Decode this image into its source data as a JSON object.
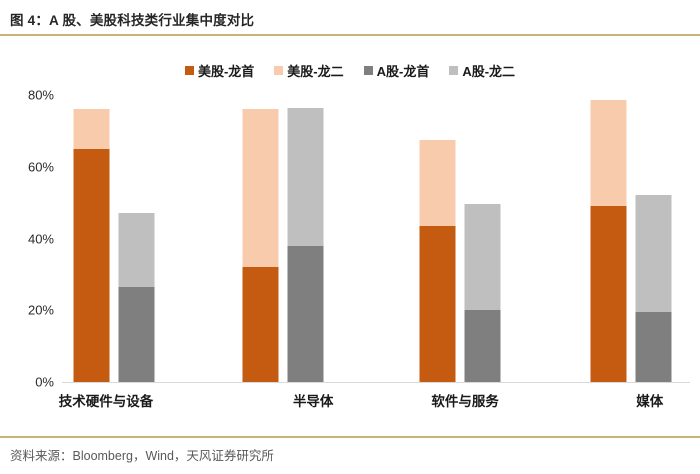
{
  "header": {
    "title": "图 4：A 股、美股科技类行业集中度对比"
  },
  "footer": {
    "source": "资料来源：Bloomberg，Wind，天风证券研究所"
  },
  "colors": {
    "rule_line": "#C6B478",
    "axis_line": "#D9D9D9",
    "us_leader": "#C55A11",
    "us_second": "#F8CBAD",
    "a_leader": "#7F7F7F",
    "a_second": "#BFBFBF"
  },
  "chart_data": {
    "type": "bar",
    "stacked": true,
    "title": "图 4：A 股、美股科技类行业集中度对比",
    "categories": [
      "技术硬件与设备",
      "半导体",
      "软件与服务",
      "媒体"
    ],
    "series": [
      {
        "name": "美股-龙首",
        "stack": "美股",
        "color": "#C55A11",
        "values": [
          65,
          32,
          43.5,
          49
        ]
      },
      {
        "name": "美股-龙二",
        "stack": "美股",
        "color": "#F8CBAD",
        "values": [
          11,
          44,
          24,
          29.5
        ]
      },
      {
        "name": "A股-龙首",
        "stack": "A股",
        "color": "#7F7F7F",
        "values": [
          26.5,
          38,
          20,
          19.5
        ]
      },
      {
        "name": "A股-龙二",
        "stack": "A股",
        "color": "#BFBFBF",
        "values": [
          20.5,
          38.5,
          29.5,
          32.5
        ]
      }
    ],
    "stack_totals": {
      "美股": [
        76,
        76,
        67.5,
        78.5
      ],
      "A股": [
        47,
        76.5,
        49.5,
        52
      ]
    },
    "ylim": [
      0,
      80
    ],
    "yticks": [
      "0%",
      "20%",
      "40%",
      "60%",
      "80%"
    ],
    "grid": false,
    "legend_position": "top"
  }
}
